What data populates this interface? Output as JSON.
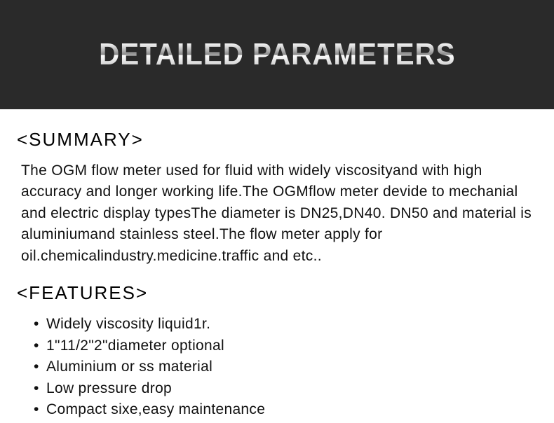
{
  "header": {
    "title": "DETAILED PARAMETERS"
  },
  "summary": {
    "heading": "<SUMMARY>",
    "text": "The OGM flow meter used for fluid with widely viscosityand with high accuracy and longer working life.The OGMflow meter devide to mechanial and electric display typesThe diameter is DN25,DN40. DN50 and material is aluminiumand stainless steel.The flow meter apply for oil.chemicalindustry.medicine.traffic and etc.."
  },
  "features": {
    "heading": "<FEATURES>",
    "items": [
      "Widely viscosity liquid1r.",
      "1\"11/2\"2\"diameter optional",
      "Aluminium or ss material",
      "Low pressure drop",
      "Compact sixe,easy maintenance"
    ]
  },
  "colors": {
    "header_bg": "#2a2a2a",
    "body_bg": "#ffffff",
    "text": "#111111"
  }
}
